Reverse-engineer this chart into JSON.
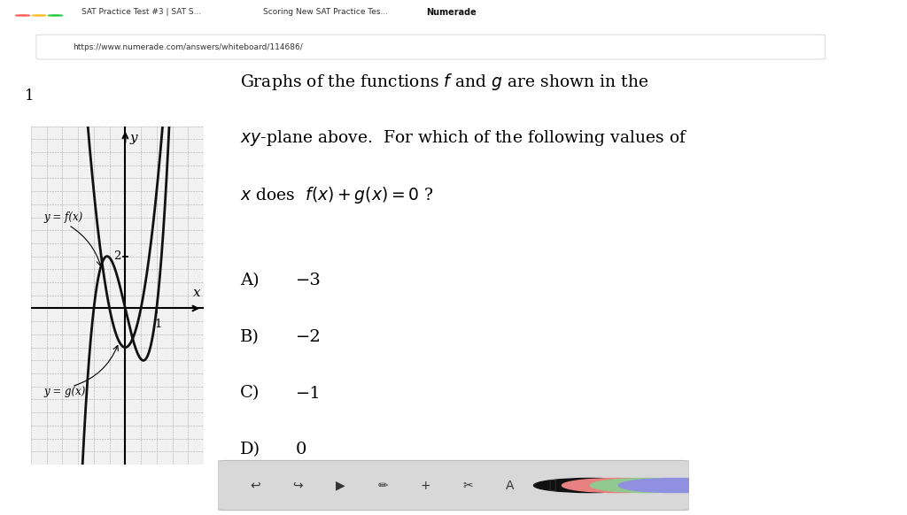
{
  "bg_white": "#ffffff",
  "bg_browser_chrome": "#dee1e6",
  "bg_tab_bar": "#dee1e6",
  "bg_active_tab": "#ffffff",
  "bg_content": "#ffffff",
  "bg_toolbar_bottom": "#e8e8e8",
  "graph_bg": "#f0f0f0",
  "grid_color": "#aaaaaa",
  "curve_color": "#111111",
  "curve_linewidth": 2.0,
  "graph_xlim": [
    -3.0,
    2.5
  ],
  "graph_ylim": [
    -6.0,
    7.0
  ],
  "f_a": 5.2,
  "g_a": 8.0,
  "g_b": -2.0,
  "label_f": "y = f(x)",
  "label_g": "y = g(x)",
  "q_line1": "Graphs of the functions ",
  "q_f": "f",
  "q_and": " and ",
  "q_g": "g",
  "q_line1end": " are shown in the",
  "q_line2": "xy-plane above.  For which of the following values of",
  "q_line3a": "x",
  "q_line3b": " does  ",
  "q_eq": "f(x) + g(x) = 0",
  "q_line3c": " ?",
  "choices_letters": [
    "A)",
    "B)",
    "C)",
    "D)"
  ],
  "choices_values": [
    "−3",
    "−2",
    "−1",
    "0"
  ],
  "number_label": "1",
  "url": "https://www.numerade.com/answers/whiteboard/114686/",
  "tab_title": "Numerade"
}
